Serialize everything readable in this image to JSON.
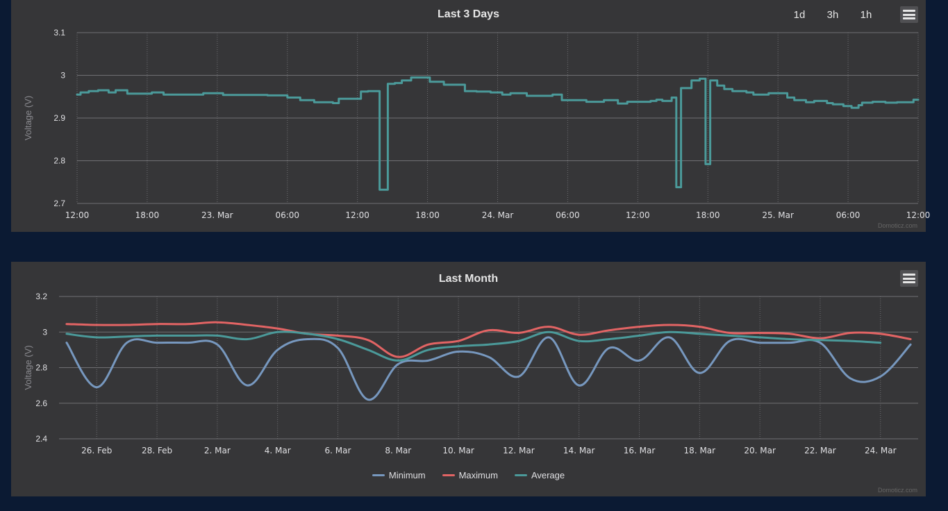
{
  "panel_3days": {
    "menu_icon": "hamburger-menu-icon",
    "credits": "Domoticz.com",
    "zoom_buttons": [
      "1d",
      "3h",
      "1h"
    ]
  },
  "panel_month": {
    "menu_icon": "hamburger-menu-icon",
    "credits": "Domoticz.com"
  },
  "colors": {
    "background": "#0b1a33",
    "panel": "#363638",
    "grid": "#707073",
    "teal": "#4b9a9a",
    "minimum": "#7798bf",
    "maximum": "#e26464"
  },
  "chart_data": [
    {
      "type": "line",
      "step": true,
      "title": "Last 3 Days",
      "ylabel": "Voltage (V)",
      "ylim": [
        2.7,
        3.1
      ],
      "yticks": [
        "2.7",
        "2.8",
        "2.9",
        "3",
        "3.1"
      ],
      "x_unit": "hours",
      "xlim": [
        12,
        84
      ],
      "xticks": [
        {
          "x": 12,
          "label": "12:00"
        },
        {
          "x": 18,
          "label": "18:00"
        },
        {
          "x": 24,
          "label": "23. Mar"
        },
        {
          "x": 30,
          "label": "06:00"
        },
        {
          "x": 36,
          "label": "12:00"
        },
        {
          "x": 42,
          "label": "18:00"
        },
        {
          "x": 48,
          "label": "24. Mar"
        },
        {
          "x": 54,
          "label": "06:00"
        },
        {
          "x": 60,
          "label": "12:00"
        },
        {
          "x": 66,
          "label": "18:00"
        },
        {
          "x": 72,
          "label": "25. Mar"
        },
        {
          "x": 78,
          "label": "06:00"
        },
        {
          "x": 84,
          "label": "12:00"
        }
      ],
      "grid": true,
      "series": [
        {
          "color": "#4b9a9a",
          "x": [
            12,
            12.3,
            13,
            13.8,
            14.7,
            15.3,
            16.3,
            17.2,
            18.4,
            19.4,
            21.8,
            22.8,
            24.5,
            28.3,
            29.1,
            30,
            31.1,
            32.3,
            33.1,
            33.9,
            34.4,
            36.3,
            36.9,
            37.9,
            38.6,
            39.2,
            39.8,
            40.6,
            42.2,
            43.4,
            44.6,
            45.2,
            46.2,
            47.4,
            48.4,
            49.1,
            50.5,
            51.7,
            52.7,
            53.5,
            55.6,
            56.4,
            57.1,
            58.3,
            59.1,
            60.2,
            61.1,
            61.6,
            62.1,
            62.9,
            63.3,
            63.7,
            64.6,
            65.3,
            65.8,
            66.2,
            66.8,
            67.4,
            68.1,
            69.3,
            69.9,
            71.2,
            72.8,
            73.4,
            74.4,
            75.1,
            76.2,
            76.7,
            77.6,
            78.3,
            78.9,
            79.2,
            79.7,
            80.1,
            81.2,
            82.2,
            83.6,
            84
          ],
          "y": [
            2.955,
            2.96,
            2.963,
            2.965,
            2.96,
            2.965,
            2.957,
            2.957,
            2.96,
            2.955,
            2.955,
            2.958,
            2.954,
            2.953,
            2.953,
            2.948,
            2.942,
            2.937,
            2.937,
            2.935,
            2.945,
            2.962,
            2.963,
            2.732,
            2.98,
            2.982,
            2.988,
            2.995,
            2.985,
            2.978,
            2.978,
            2.963,
            2.962,
            2.96,
            2.955,
            2.958,
            2.952,
            2.952,
            2.955,
            2.942,
            2.938,
            2.938,
            2.942,
            2.934,
            2.938,
            2.938,
            2.94,
            2.943,
            2.94,
            2.948,
            2.738,
            2.97,
            2.988,
            2.992,
            2.792,
            2.988,
            2.976,
            2.968,
            2.963,
            2.96,
            2.955,
            2.958,
            2.948,
            2.942,
            2.937,
            2.94,
            2.935,
            2.932,
            2.928,
            2.924,
            2.93,
            2.936,
            2.936,
            2.938,
            2.936,
            2.937,
            2.943,
            2.943
          ]
        }
      ]
    },
    {
      "type": "line",
      "title": "Last Month",
      "ylabel": "Voltage (V)",
      "ylim": [
        2.4,
        3.2
      ],
      "yticks": [
        "2.4",
        "2.6",
        "2.8",
        "3",
        "3.2"
      ],
      "x_unit": "days since 24 Feb",
      "xlim": [
        0.75,
        29.25
      ],
      "xticks": [
        {
          "x": 2,
          "label": "26. Feb"
        },
        {
          "x": 4,
          "label": "28. Feb"
        },
        {
          "x": 6,
          "label": "2. Mar"
        },
        {
          "x": 8,
          "label": "4. Mar"
        },
        {
          "x": 10,
          "label": "6. Mar"
        },
        {
          "x": 12,
          "label": "8. Mar"
        },
        {
          "x": 14,
          "label": "10. Mar"
        },
        {
          "x": 16,
          "label": "12. Mar"
        },
        {
          "x": 18,
          "label": "14. Mar"
        },
        {
          "x": 20,
          "label": "16. Mar"
        },
        {
          "x": 22,
          "label": "18. Mar"
        },
        {
          "x": 24,
          "label": "20. Mar"
        },
        {
          "x": 26,
          "label": "22. Mar"
        },
        {
          "x": 28,
          "label": "24. Mar"
        }
      ],
      "grid": true,
      "legend": "bottom-center",
      "series": [
        {
          "name": "Minimum",
          "color": "#7798bf",
          "x": [
            1,
            2,
            3,
            4,
            5,
            6,
            7,
            8,
            9,
            10,
            11,
            12,
            13,
            14,
            15,
            16,
            17,
            18,
            19,
            20,
            21,
            22,
            23,
            24,
            25,
            26,
            27,
            28,
            29
          ],
          "y": [
            2.94,
            2.69,
            2.94,
            2.94,
            2.94,
            2.93,
            2.7,
            2.9,
            2.96,
            2.91,
            2.62,
            2.82,
            2.84,
            2.89,
            2.86,
            2.75,
            2.97,
            2.7,
            2.91,
            2.84,
            2.97,
            2.77,
            2.95,
            2.94,
            2.94,
            2.94,
            2.74,
            2.75,
            2.93
          ]
        },
        {
          "name": "Maximum",
          "color": "#e26464",
          "x": [
            1,
            2,
            3,
            4,
            5,
            6,
            7,
            8,
            9,
            10,
            11,
            12,
            13,
            14,
            15,
            16,
            17,
            18,
            19,
            20,
            21,
            22,
            23,
            24,
            25,
            26,
            27,
            28,
            29
          ],
          "y": [
            3.045,
            3.04,
            3.04,
            3.045,
            3.045,
            3.055,
            3.04,
            3.02,
            2.99,
            2.98,
            2.955,
            2.86,
            2.93,
            2.95,
            3.01,
            2.995,
            3.03,
            2.985,
            3.01,
            3.03,
            3.04,
            3.03,
            2.995,
            2.995,
            2.99,
            2.965,
            2.995,
            2.99,
            2.96
          ]
        },
        {
          "name": "Average",
          "color": "#4b9a9a",
          "x": [
            1,
            2,
            3,
            4,
            5,
            6,
            7,
            8,
            9,
            10,
            11,
            12,
            13,
            14,
            15,
            16,
            17,
            18,
            19,
            20,
            21,
            22,
            23,
            24,
            25,
            26,
            27,
            28
          ],
          "y": [
            2.99,
            2.97,
            2.975,
            2.98,
            2.98,
            2.98,
            2.96,
            3.0,
            2.99,
            2.96,
            2.9,
            2.84,
            2.9,
            2.92,
            2.93,
            2.95,
            3.0,
            2.95,
            2.96,
            2.98,
            3.0,
            2.99,
            2.98,
            2.97,
            2.96,
            2.955,
            2.95,
            2.94
          ]
        }
      ]
    }
  ]
}
